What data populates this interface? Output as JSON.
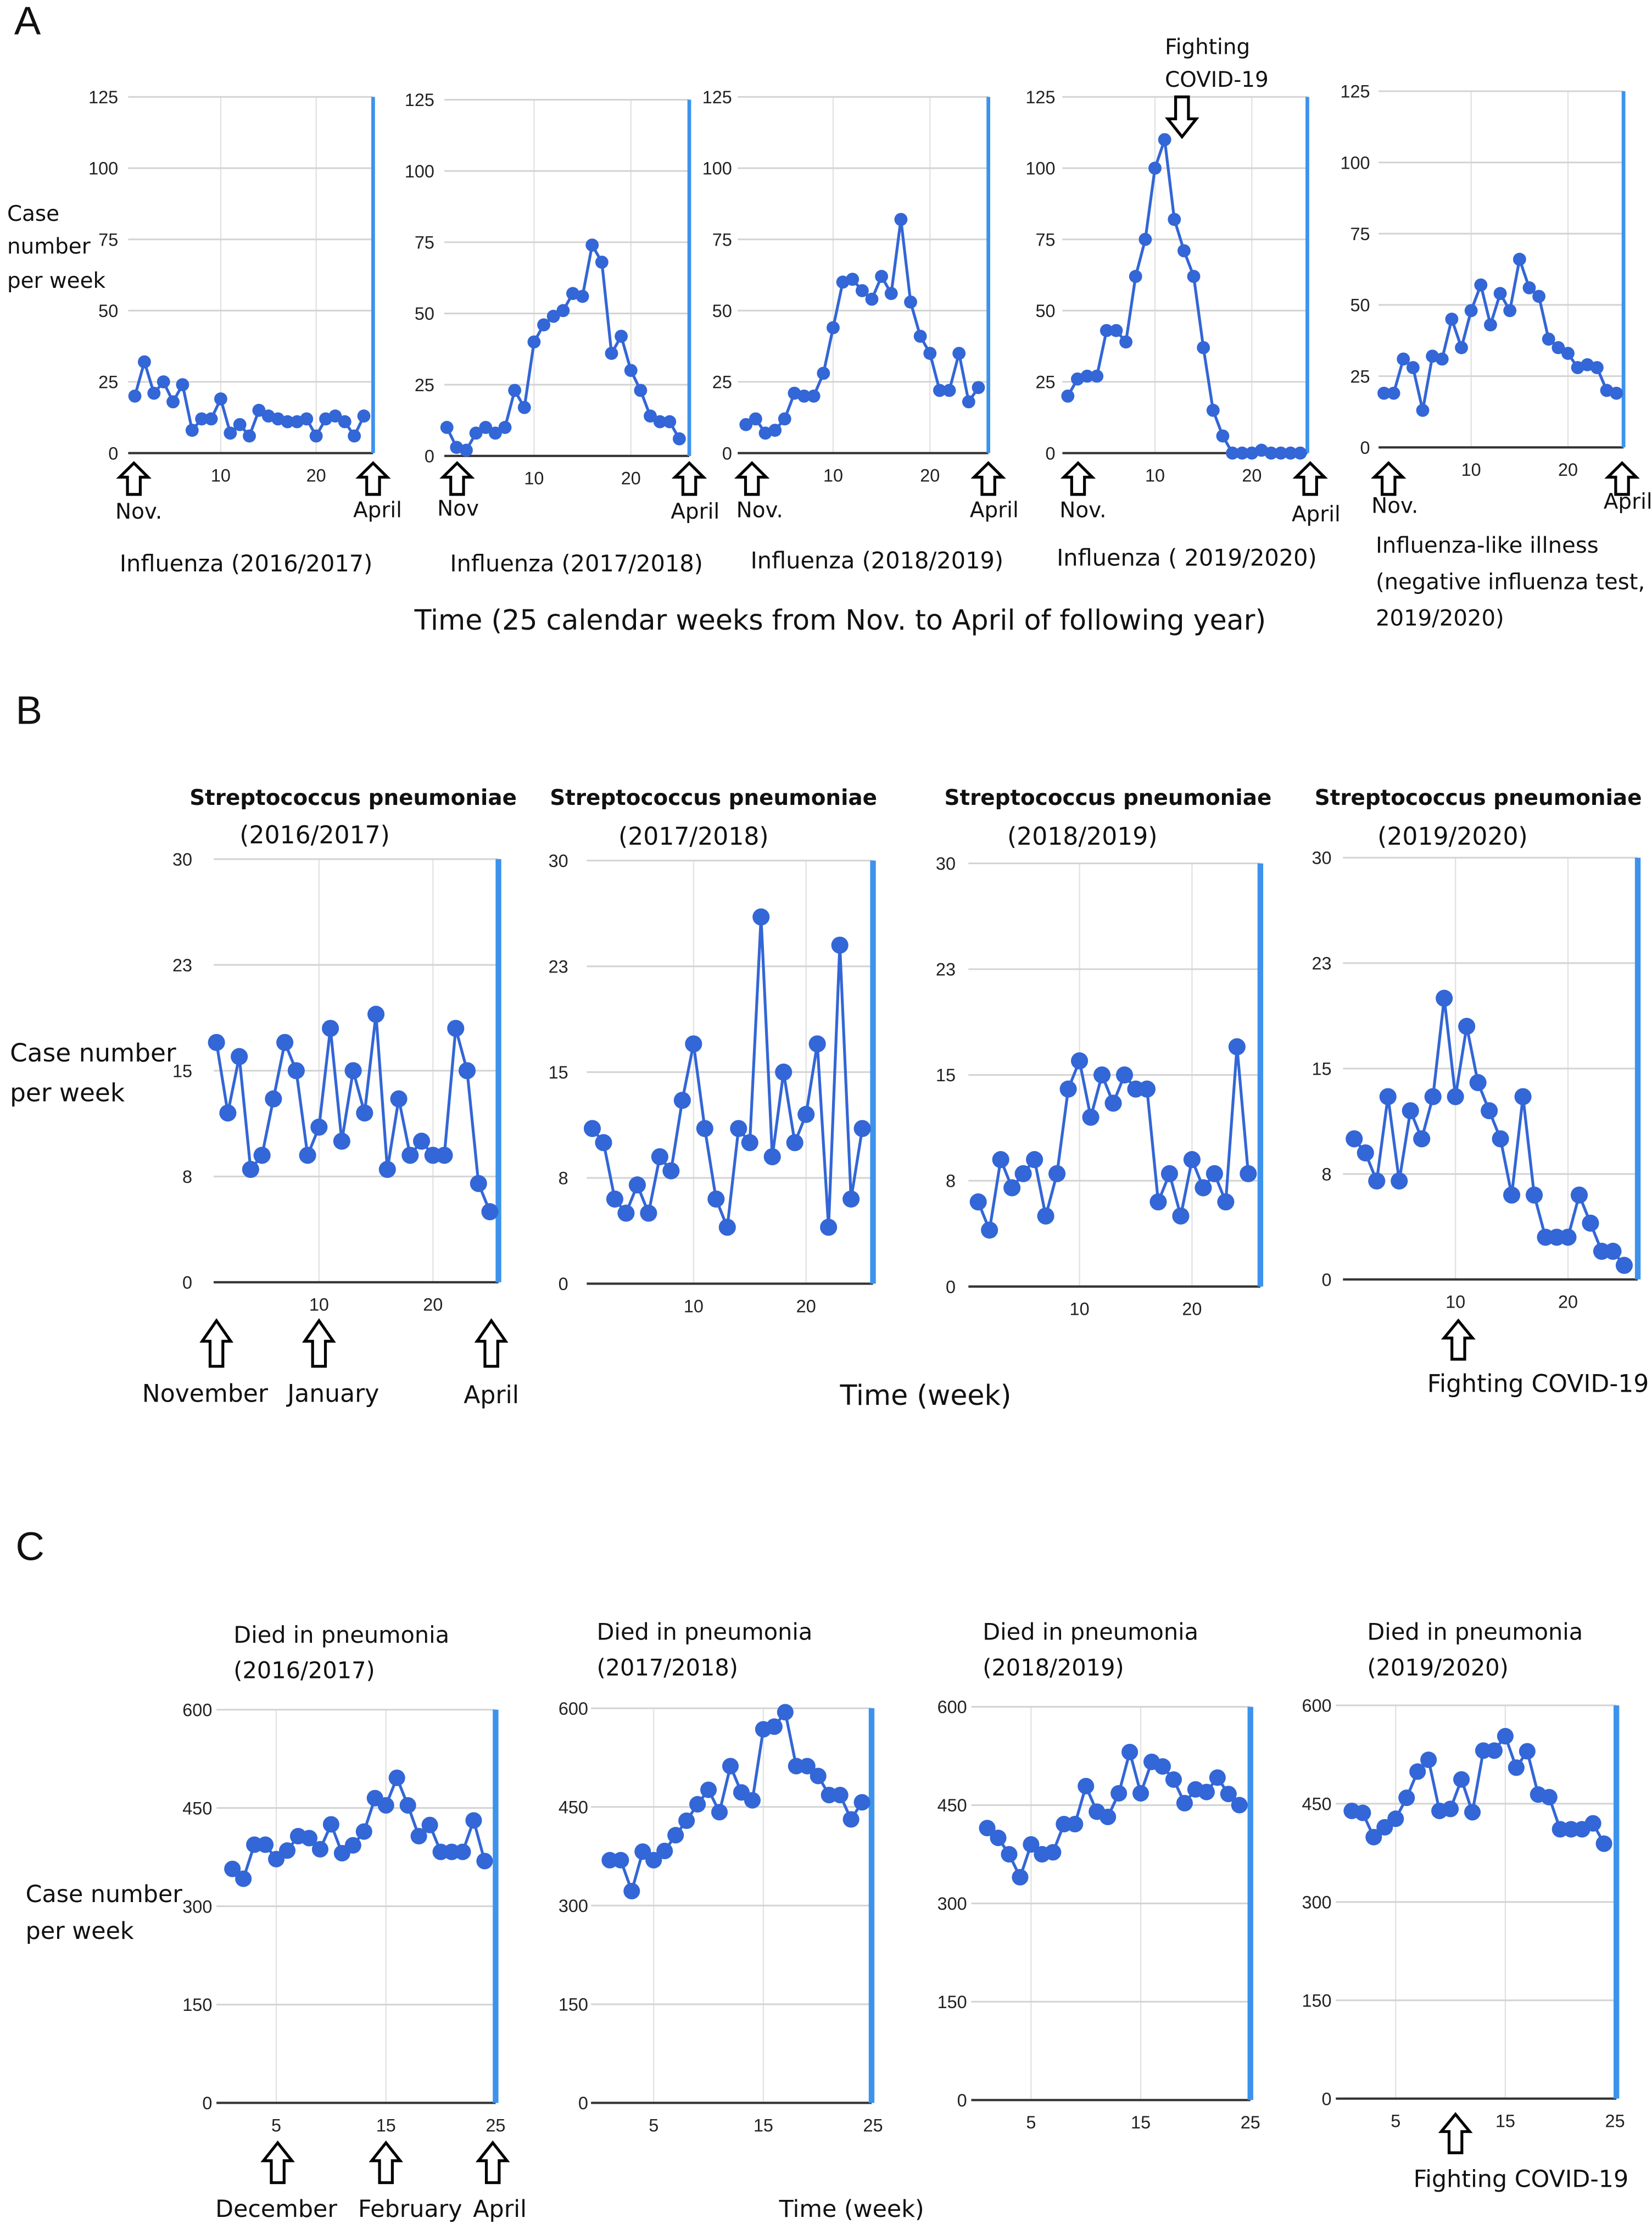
{
  "panel_letters": [
    "A",
    "B",
    "C"
  ],
  "panel_a": {
    "ylabel": [
      "Case",
      "number",
      "per week"
    ],
    "annotation": [
      "Fighting",
      "COVID-19"
    ],
    "xlabel": "Time (25 calendar weeks from Nov. to April of following year)",
    "start_labels": [
      "Nov.",
      "Nov",
      "Nov.",
      "Nov.",
      "Nov."
    ],
    "end_labels": [
      "April",
      "April",
      "April",
      "April",
      "April"
    ]
  },
  "panel_b": {
    "ylabel": [
      "Case number",
      "per week"
    ],
    "arrow_labels": [
      "November",
      "January",
      "April"
    ],
    "xlabel": "Time (week)",
    "annotation": "Fighting COVID-19"
  },
  "panel_c": {
    "ylabel": [
      "Case number",
      "per week"
    ],
    "arrow_labels": [
      "December",
      "February",
      "April"
    ],
    "xlabel": "Time (week)",
    "annotation": "Fighting COVID-19"
  },
  "colors": {
    "series": "#3366d6",
    "end_marker": "#3d93ec",
    "grid": "#d4d4d4",
    "axis": "#333333"
  },
  "chart_data": [
    {
      "type": "line",
      "title": [
        "Influenza (2016/2017)"
      ],
      "ylim": [
        0,
        125
      ],
      "yticks": [
        0,
        25,
        50,
        75,
        100,
        125
      ],
      "ytick_labels": [
        "0",
        "25",
        "50",
        "75",
        "100",
        "125"
      ],
      "xticks": [
        10,
        20
      ],
      "x": [
        1,
        2,
        3,
        4,
        5,
        6,
        7,
        8,
        9,
        10,
        11,
        12,
        13,
        14,
        15,
        16,
        17,
        18,
        19,
        20,
        21,
        22,
        23,
        24,
        25
      ],
      "values": [
        20,
        32,
        21,
        25,
        18,
        24,
        8,
        12,
        12,
        19,
        7,
        10,
        6,
        15,
        13,
        12,
        11,
        11,
        12,
        6,
        12,
        13,
        11,
        6,
        13
      ]
    },
    {
      "type": "line",
      "title": [
        "Influenza (2017/2018)"
      ],
      "ylim": [
        0,
        125
      ],
      "yticks": [
        0,
        25,
        50,
        75,
        100,
        125
      ],
      "ytick_labels": [
        "0",
        "25",
        "50",
        "75",
        "100",
        "125"
      ],
      "xticks": [
        10,
        20
      ],
      "x": [
        1,
        2,
        3,
        4,
        5,
        6,
        7,
        8,
        9,
        10,
        11,
        12,
        13,
        14,
        15,
        16,
        17,
        18,
        19,
        20,
        21,
        22,
        23,
        24,
        25
      ],
      "values": [
        10,
        3,
        2,
        8,
        10,
        8,
        10,
        23,
        17,
        40,
        46,
        49,
        51,
        57,
        56,
        74,
        68,
        36,
        42,
        30,
        23,
        14,
        12,
        12,
        6
      ]
    },
    {
      "type": "line",
      "title": [
        "Influenza (2018/2019)"
      ],
      "ylim": [
        0,
        125
      ],
      "yticks": [
        0,
        25,
        50,
        75,
        100,
        125
      ],
      "ytick_labels": [
        "0",
        "25",
        "50",
        "75",
        "100",
        "125"
      ],
      "xticks": [
        10,
        20
      ],
      "x": [
        1,
        2,
        3,
        4,
        5,
        6,
        7,
        8,
        9,
        10,
        11,
        12,
        13,
        14,
        15,
        16,
        17,
        18,
        19,
        20,
        21,
        22,
        23,
        24,
        25
      ],
      "values": [
        10,
        12,
        7,
        8,
        12,
        21,
        20,
        20,
        28,
        44,
        60,
        61,
        57,
        54,
        62,
        56,
        82,
        53,
        41,
        35,
        22,
        22,
        35,
        18,
        23
      ]
    },
    {
      "type": "line",
      "title": [
        "Influenza ( 2019/2020)"
      ],
      "ylim": [
        0,
        125
      ],
      "yticks": [
        0,
        25,
        50,
        75,
        100,
        125
      ],
      "ytick_labels": [
        "0",
        "25",
        "50",
        "75",
        "100",
        "125"
      ],
      "xticks": [
        10,
        20
      ],
      "x": [
        1,
        2,
        3,
        4,
        5,
        6,
        7,
        8,
        9,
        10,
        11,
        12,
        13,
        14,
        15,
        16,
        17,
        18,
        19,
        20,
        21,
        22,
        23,
        24,
        25
      ],
      "values": [
        20,
        26,
        27,
        27,
        43,
        43,
        39,
        62,
        75,
        100,
        110,
        82,
        71,
        62,
        37,
        15,
        6,
        0,
        0,
        0,
        1,
        0,
        0,
        0,
        0
      ]
    },
    {
      "type": "line",
      "title": [
        "Influenza-like illness",
        "(negative influenza test,",
        "2019/2020)"
      ],
      "ylim": [
        0,
        125
      ],
      "yticks": [
        0,
        25,
        50,
        75,
        100,
        125
      ],
      "ytick_labels": [
        "0",
        "25",
        "50",
        "75",
        "100",
        "125"
      ],
      "xticks": [
        10,
        20
      ],
      "x": [
        1,
        2,
        3,
        4,
        5,
        6,
        7,
        8,
        9,
        10,
        11,
        12,
        13,
        14,
        15,
        16,
        17,
        18,
        19,
        20,
        21,
        22,
        23,
        24,
        25
      ],
      "values": [
        19,
        19,
        31,
        28,
        13,
        32,
        31,
        45,
        35,
        48,
        57,
        43,
        54,
        48,
        66,
        56,
        53,
        38,
        35,
        33,
        28,
        29,
        28,
        20,
        19
      ]
    },
    {
      "type": "line",
      "title": [
        "Streptococcus pneumoniae",
        "(2016/2017)"
      ],
      "ylim": [
        0,
        30
      ],
      "yticks": [
        0,
        7.5,
        15,
        22.5,
        30
      ],
      "ytick_labels": [
        "0",
        "8",
        "15",
        "23",
        "30"
      ],
      "xticks": [
        10,
        20
      ],
      "x": [
        1,
        2,
        3,
        4,
        5,
        6,
        7,
        8,
        9,
        10,
        11,
        12,
        13,
        14,
        15,
        16,
        17,
        18,
        19,
        20,
        21,
        22,
        23,
        24,
        25
      ],
      "values": [
        17,
        12,
        16,
        8,
        9,
        13,
        17,
        15,
        9,
        11,
        18,
        10,
        15,
        12,
        19,
        8,
        13,
        9,
        10,
        9,
        9,
        18,
        15,
        7,
        5
      ]
    },
    {
      "type": "line",
      "title": [
        "Streptococcus pneumoniae",
        "(2017/2018)"
      ],
      "ylim": [
        0,
        30
      ],
      "yticks": [
        0,
        7.5,
        15,
        22.5,
        30
      ],
      "ytick_labels": [
        "0",
        "8",
        "15",
        "23",
        "30"
      ],
      "xticks": [
        10,
        20
      ],
      "x": [
        1,
        2,
        3,
        4,
        5,
        6,
        7,
        8,
        9,
        10,
        11,
        12,
        13,
        14,
        15,
        16,
        17,
        18,
        19,
        20,
        21,
        22,
        23,
        24,
        25
      ],
      "values": [
        11,
        10,
        6,
        5,
        7,
        5,
        9,
        8,
        13,
        17,
        11,
        6,
        4,
        11,
        10,
        26,
        9,
        15,
        10,
        12,
        17,
        4,
        24,
        6,
        11
      ]
    },
    {
      "type": "line",
      "title": [
        "Streptococcus pneumoniae",
        "(2018/2019)"
      ],
      "ylim": [
        0,
        30
      ],
      "yticks": [
        0,
        7.5,
        15,
        22.5,
        30
      ],
      "ytick_labels": [
        "0",
        "8",
        "15",
        "23",
        "30"
      ],
      "xticks": [
        10,
        20
      ],
      "x": [
        1,
        2,
        3,
        4,
        5,
        6,
        7,
        8,
        9,
        10,
        11,
        12,
        13,
        14,
        15,
        16,
        17,
        18,
        19,
        20,
        21,
        22,
        23,
        24,
        25
      ],
      "values": [
        6,
        4,
        9,
        7,
        8,
        9,
        5,
        8,
        14,
        16,
        12,
        15,
        13,
        15,
        14,
        14,
        6,
        8,
        5,
        9,
        7,
        8,
        6,
        17,
        8
      ]
    },
    {
      "type": "line",
      "title": [
        "Streptococcus pneumoniae",
        "(2019/2020)"
      ],
      "ylim": [
        0,
        30
      ],
      "yticks": [
        0,
        7.5,
        15,
        22.5,
        30
      ],
      "ytick_labels": [
        "0",
        "8",
        "15",
        "23",
        "30"
      ],
      "xticks": [
        10,
        20
      ],
      "x": [
        1,
        2,
        3,
        4,
        5,
        6,
        7,
        8,
        9,
        10,
        11,
        12,
        13,
        14,
        15,
        16,
        17,
        18,
        19,
        20,
        21,
        22,
        23,
        24,
        25
      ],
      "values": [
        10,
        9,
        7,
        13,
        7,
        12,
        10,
        13,
        20,
        13,
        18,
        14,
        12,
        10,
        6,
        13,
        6,
        3,
        3,
        3,
        6,
        4,
        2,
        2,
        1
      ]
    },
    {
      "type": "line",
      "title": [
        "Died in pneumonia",
        "(2016/2017)"
      ],
      "ylim": [
        0,
        600
      ],
      "yticks": [
        0,
        150,
        300,
        450,
        600
      ],
      "ytick_labels": [
        "0",
        "150",
        "300",
        "450",
        "600"
      ],
      "xticks": [
        5,
        15,
        25
      ],
      "x": [
        1,
        2,
        3,
        4,
        5,
        6,
        7,
        8,
        9,
        10,
        11,
        12,
        13,
        14,
        15,
        16,
        17,
        18,
        19,
        20,
        21,
        22,
        23,
        24
      ],
      "values": [
        357,
        342,
        394,
        394,
        372,
        385,
        407,
        404,
        387,
        425,
        381,
        393,
        414,
        465,
        454,
        496,
        454,
        407,
        424,
        383,
        383,
        383,
        431,
        369
      ]
    },
    {
      "type": "line",
      "title": [
        "Died in pneumonia",
        "(2017/2018)"
      ],
      "ylim": [
        0,
        600
      ],
      "yticks": [
        0,
        150,
        300,
        450,
        600
      ],
      "ytick_labels": [
        "0",
        "150",
        "300",
        "450",
        "600"
      ],
      "xticks": [
        5,
        15,
        25
      ],
      "x": [
        1,
        2,
        3,
        4,
        5,
        6,
        7,
        8,
        9,
        10,
        11,
        12,
        13,
        14,
        15,
        16,
        17,
        18,
        19,
        20,
        21,
        22,
        23,
        24
      ],
      "values": [
        369,
        369,
        322,
        382,
        369,
        383,
        407,
        429,
        454,
        476,
        442,
        512,
        472,
        460,
        568,
        572,
        594,
        512,
        512,
        497,
        468,
        468,
        431,
        457
      ]
    },
    {
      "type": "line",
      "title": [
        "Died in pneumonia",
        "(2018/2019)"
      ],
      "ylim": [
        0,
        600
      ],
      "yticks": [
        0,
        150,
        300,
        450,
        600
      ],
      "ytick_labels": [
        "0",
        "150",
        "300",
        "450",
        "600"
      ],
      "xticks": [
        5,
        15,
        25
      ],
      "x": [
        1,
        2,
        3,
        4,
        5,
        6,
        7,
        8,
        9,
        10,
        11,
        12,
        13,
        14,
        15,
        16,
        17,
        18,
        19,
        20,
        21,
        22,
        23,
        24
      ],
      "values": [
        415,
        400,
        375,
        340,
        390,
        375,
        378,
        421,
        421,
        479,
        440,
        432,
        468,
        531,
        468,
        516,
        509,
        489,
        453,
        474,
        470,
        492,
        467,
        450
      ]
    },
    {
      "type": "line",
      "title": [
        "Died in pneumonia",
        "(2019/2020)"
      ],
      "ylim": [
        0,
        600
      ],
      "yticks": [
        0,
        150,
        300,
        450,
        600
      ],
      "ytick_labels": [
        "0",
        "150",
        "300",
        "450",
        "600"
      ],
      "xticks": [
        5,
        15,
        25
      ],
      "x": [
        1,
        2,
        3,
        4,
        5,
        6,
        7,
        8,
        9,
        10,
        11,
        12,
        13,
        14,
        15,
        16,
        17,
        18,
        19,
        20,
        21,
        22,
        23,
        24
      ],
      "values": [
        439,
        436,
        399,
        414,
        427,
        459,
        499,
        517,
        439,
        442,
        487,
        437,
        531,
        531,
        553,
        505,
        530,
        464,
        460,
        411,
        411,
        411,
        420,
        389
      ]
    }
  ]
}
